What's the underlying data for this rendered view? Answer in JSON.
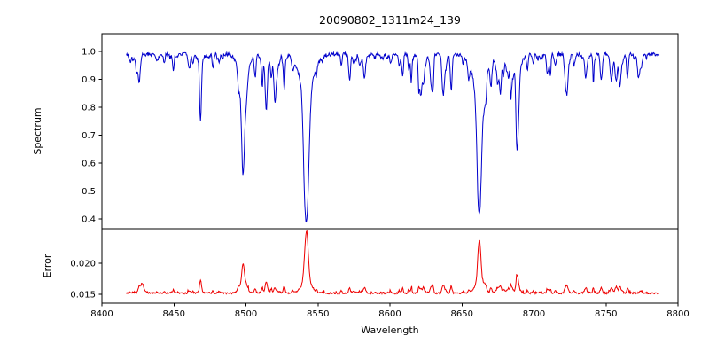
{
  "chart_data": {
    "type": "line",
    "title": "20090802_1311m24_139",
    "xlabel": "Wavelength",
    "grid": false,
    "legend": "none",
    "xlim": [
      8400,
      8800
    ],
    "x_data_range": [
      8417,
      8787
    ],
    "x_step": 0.35,
    "xticks": [
      {
        "v": 8400,
        "label": "8400"
      },
      {
        "v": 8450,
        "label": "8450"
      },
      {
        "v": 8500,
        "label": "8500"
      },
      {
        "v": 8550,
        "label": "8550"
      },
      {
        "v": 8600,
        "label": "8600"
      },
      {
        "v": 8650,
        "label": "8650"
      },
      {
        "v": 8700,
        "label": "8700"
      },
      {
        "v": 8750,
        "label": "8750"
      },
      {
        "v": 8800,
        "label": "8800"
      }
    ],
    "panels": [
      {
        "name": "spectrum",
        "ylabel": "Spectrum",
        "color": "#0000cc",
        "ylim": [
          0.365,
          1.0635
        ],
        "yticks": [
          {
            "v": 1.0,
            "label": "1.0"
          },
          {
            "v": 0.9,
            "label": "0.9"
          },
          {
            "v": 0.8,
            "label": "0.8"
          },
          {
            "v": 0.7,
            "label": "0.7"
          },
          {
            "v": 0.6,
            "label": "0.6"
          },
          {
            "v": 0.5,
            "label": "0.5"
          },
          {
            "v": 0.4,
            "label": "0.4"
          }
        ],
        "continuum": 0.99,
        "noise_amplitude": 0.0065,
        "major_absorption_lines": [
          {
            "center": 8424.0,
            "depth": 0.065,
            "width": 0.6
          },
          {
            "center": 8468.3,
            "depth": 0.1,
            "width": 0.65
          },
          {
            "center": 8498.0,
            "depth": 0.435,
            "width": 1.05
          },
          {
            "center": 8514.2,
            "depth": 0.135,
            "width": 0.7
          },
          {
            "center": 8520.5,
            "depth": 0.09,
            "width": 0.6
          },
          {
            "center": 8542.1,
            "depth": 0.6,
            "width": 1.55
          },
          {
            "center": 8582.3,
            "depth": 0.075,
            "width": 0.65
          },
          {
            "center": 8621.5,
            "depth": 0.075,
            "width": 0.6
          },
          {
            "center": 8662.1,
            "depth": 0.58,
            "width": 1.5
          },
          {
            "center": 8674.8,
            "depth": 0.095,
            "width": 0.65
          },
          {
            "center": 8688.6,
            "depth": 0.255,
            "width": 0.85
          },
          {
            "center": 8736.0,
            "depth": 0.085,
            "width": 0.65
          },
          {
            "center": 8757.0,
            "depth": 0.095,
            "width": 0.65
          },
          {
            "center": 8772.5,
            "depth": 0.075,
            "width": 0.6
          }
        ],
        "weak_lines": {
          "count": 140,
          "seed": 7,
          "depth_min": 0.012,
          "depth_max": 0.105,
          "depth_skew": 2.6,
          "width_min": 0.35,
          "width_max": 0.8
        }
      },
      {
        "name": "error",
        "ylabel": "Error",
        "color": "#ee0000",
        "ylim": [
          0.0136,
          0.0256
        ],
        "yticks": [
          {
            "v": 0.02,
            "label": "0.020"
          },
          {
            "v": 0.015,
            "label": "0.015"
          }
        ],
        "baseline": 0.0152,
        "noise_amplitude": 0.00013,
        "weak_line_coupling": 0.009,
        "peaks": [
          {
            "center": 8428.0,
            "height": 0.0016,
            "width": 0.9
          },
          {
            "center": 8468.3,
            "height": 0.0009,
            "width": 0.7
          },
          {
            "center": 8498.0,
            "height": 0.0048,
            "width": 0.95
          },
          {
            "center": 8514.2,
            "height": 0.0013,
            "width": 0.7
          },
          {
            "center": 8542.1,
            "height": 0.01,
            "width": 1.15
          },
          {
            "center": 8582.3,
            "height": 0.0008,
            "width": 0.7
          },
          {
            "center": 8662.1,
            "height": 0.0086,
            "width": 1.05
          },
          {
            "center": 8674.8,
            "height": 0.0009,
            "width": 0.7
          },
          {
            "center": 8688.6,
            "height": 0.002,
            "width": 0.8
          },
          {
            "center": 8736.0,
            "height": 0.0009,
            "width": 0.7
          },
          {
            "center": 8757.0,
            "height": 0.001,
            "width": 0.7
          }
        ]
      }
    ]
  }
}
